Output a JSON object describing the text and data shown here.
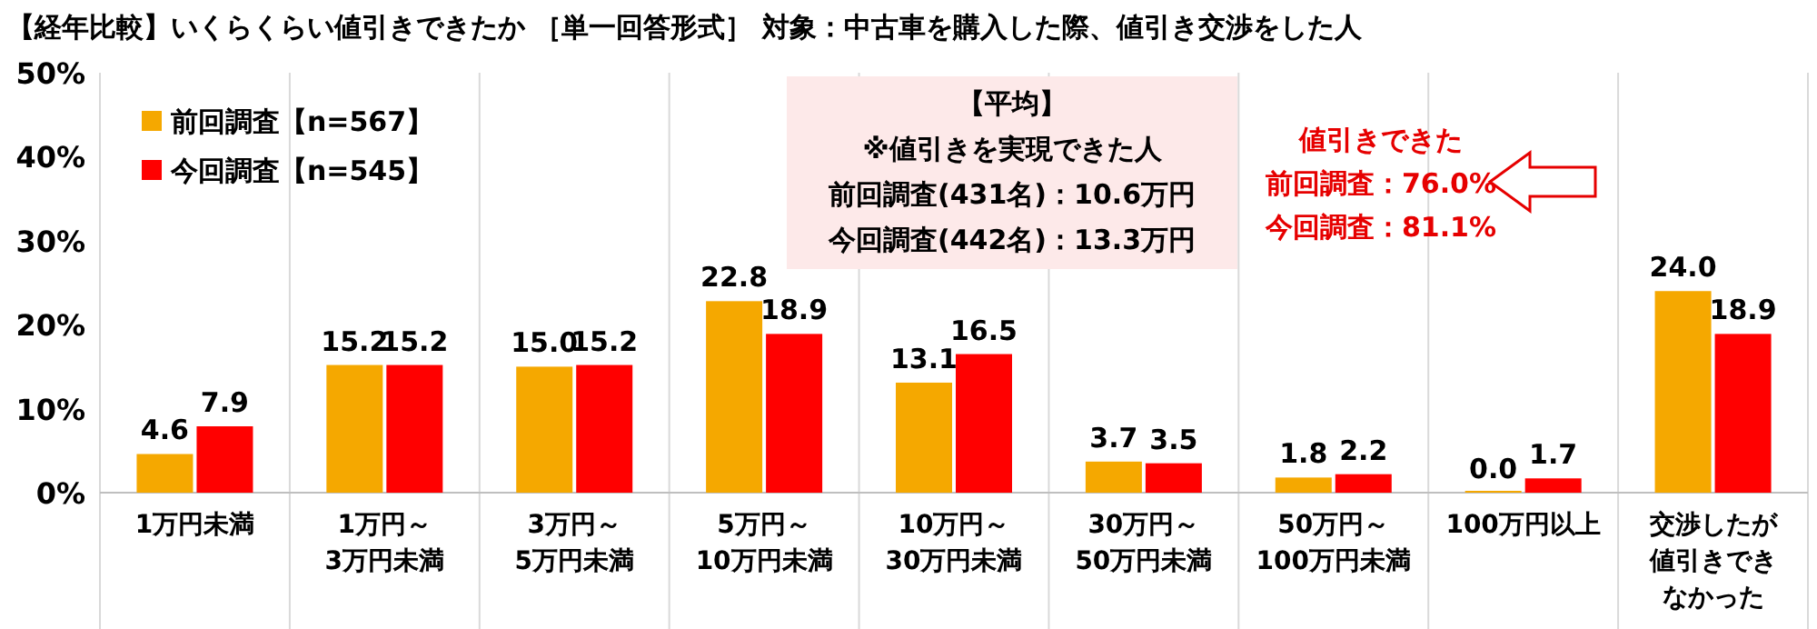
{
  "chart_data": {
    "type": "bar",
    "title": "【経年比較】いくらくらい値引きできたか ［単一回答形式］ 対象：中古車を購入した際、値引き交渉をした人",
    "categories": [
      "1万円未満",
      "1万円～\n3万円未満",
      "3万円～\n5万円未満",
      "5万円～\n10万円未満",
      "10万円～\n30万円未満",
      "30万円～\n50万円未満",
      "50万円～\n100万円未満",
      "100万円以上",
      "交渉したが値引きできなかった"
    ],
    "series": [
      {
        "name": "前回調査【n=567】",
        "color": "#f5a800",
        "values": [
          4.6,
          15.2,
          15.0,
          22.8,
          13.1,
          3.7,
          1.8,
          0.0,
          24.0
        ],
        "value_labels": [
          "4.6",
          "15.2",
          "15.0",
          "22.8",
          "13.1",
          "3.7",
          "1.8",
          "0.0",
          "24.0"
        ]
      },
      {
        "name": "今回調査【n=545】",
        "color": "#ff0000",
        "values": [
          7.9,
          15.2,
          15.2,
          18.9,
          16.5,
          3.5,
          2.2,
          1.7,
          18.9
        ],
        "value_labels": [
          "7.9",
          "15.2",
          "15.2",
          "18.9",
          "16.5",
          "3.5",
          "2.2",
          "1.7",
          "18.9"
        ]
      }
    ],
    "ylim": [
      0,
      50
    ],
    "yticks": [
      {
        "value": 0,
        "label": "0%"
      },
      {
        "value": 10,
        "label": "10%"
      },
      {
        "value": 20,
        "label": "20%"
      },
      {
        "value": 30,
        "label": "30%"
      },
      {
        "value": 40,
        "label": "40%"
      },
      {
        "value": 50,
        "label": "50%"
      }
    ],
    "grid": "x",
    "legend": "top left",
    "annotations": [
      "【平均】",
      "※値引きを実現できた人",
      "前回調査(431名)：10.6万円",
      "今回調査(442名)：13.3万円",
      "値引きできた",
      "前回調査：76.0%",
      "今回調査：81.1%"
    ]
  }
}
